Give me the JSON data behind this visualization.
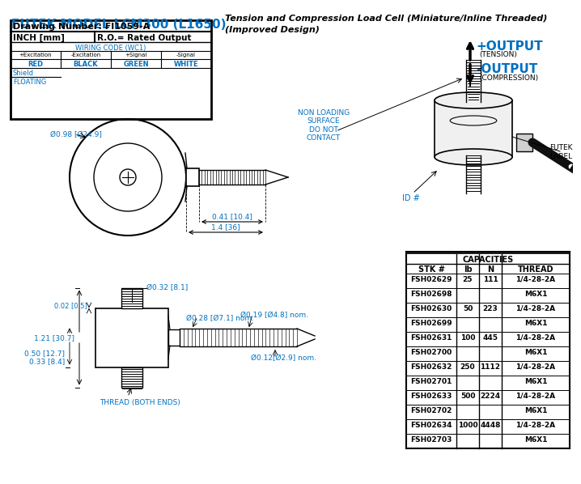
{
  "title": "FUTEK MODEL LCM300 (L1650)",
  "subtitle_line1": "Tension and Compression Load Cell (Miniature/Inline Threaded)",
  "subtitle_line2": "(Improved Design)",
  "drawing_number": "Drawing Number: FI1059-A",
  "units": "INCH [mm]",
  "ro": "R.O.= Rated Output",
  "wiring_code": "WIRING CODE (WC1)",
  "wiring_headers": [
    "+Excitation",
    "-Excitation",
    "+Signal",
    "-Signal"
  ],
  "wiring_colors": [
    "RED",
    "BLACK",
    "GREEN",
    "WHITE"
  ],
  "shield": "Shield",
  "floating": "FLOATING",
  "dim_outer": "Ø0.98 [Ø24.9]",
  "dim_032": "Ø0.32 [8.1]",
  "dim_028": "Ø0.28 [Ø7.1] nom.",
  "dim_019": "Ø0.19 [Ø4.8] nom.",
  "dim_012": "Ø0.12[Ø2.9] nom.",
  "dim_041": "0.41 [10.4]",
  "dim_14": "1.4 [36]",
  "dim_002": "0.02 [0.5]",
  "dim_121": "1.21 [30.7]",
  "dim_050": "0.50 [12.7]",
  "dim_033": "0.33 [8.4]",
  "thread_label": "THREAD (BOTH ENDS)",
  "non_loading": "NON LOADING\nSURFACE\nDO NOT\nCONTACT",
  "id_label": "ID #",
  "futek_label": "FUTEK\nLABEL",
  "output_plus": "+OUTPUT",
  "output_plus_sub": "(TENSION)",
  "output_minus": "-OUTPUT",
  "output_minus_sub": "(COMPRESSION)",
  "capacities_header": "CAPACITIES",
  "table_headers": [
    "STK #",
    "lb",
    "N",
    "THREAD"
  ],
  "table_data": [
    [
      "FSH02629",
      "25",
      "111",
      "1/4-28-2A"
    ],
    [
      "FSH02698",
      "",
      "",
      "M6X1"
    ],
    [
      "FSH02630",
      "50",
      "223",
      "1/4-28-2A"
    ],
    [
      "FSH02699",
      "",
      "",
      "M6X1"
    ],
    [
      "FSH02631",
      "100",
      "445",
      "1/4-28-2A"
    ],
    [
      "FSH02700",
      "",
      "",
      "M6X1"
    ],
    [
      "FSH02632",
      "250",
      "1112",
      "1/4-28-2A"
    ],
    [
      "FSH02701",
      "",
      "",
      "M6X1"
    ],
    [
      "FSH02633",
      "500",
      "2224",
      "1/4-28-2A"
    ],
    [
      "FSH02702",
      "",
      "",
      "M6X1"
    ],
    [
      "FSH02634",
      "1000",
      "4448",
      "1/4-28-2A"
    ],
    [
      "FSH02703",
      "",
      "",
      "M6X1"
    ]
  ],
  "title_color": "#0070C0",
  "dim_color": "#0070C0",
  "non_loading_color": "#0070C0",
  "id_color": "#0070C0",
  "futek_label_color": "#0070C0",
  "output_color": "#0070C0",
  "bg_color": "#ffffff"
}
